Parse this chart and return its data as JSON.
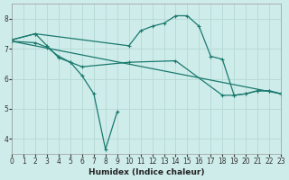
{
  "xlabel": "Humidex (Indice chaleur)",
  "background_color": "#ceecea",
  "grid_color": "#b8dbd8",
  "line_color": "#1a7a6e",
  "xlim": [
    0,
    23
  ],
  "ylim": [
    3.5,
    8.5
  ],
  "xticks": [
    0,
    1,
    2,
    3,
    4,
    5,
    6,
    7,
    8,
    9,
    10,
    11,
    12,
    13,
    14,
    15,
    16,
    17,
    18,
    19,
    20,
    21,
    22,
    23
  ],
  "yticks": [
    4,
    5,
    6,
    7,
    8
  ],
  "line1_x": [
    0,
    2,
    3,
    4,
    5,
    6,
    7,
    8,
    9
  ],
  "line1_y": [
    7.3,
    7.5,
    7.1,
    6.7,
    6.55,
    6.1,
    5.5,
    3.65,
    4.9
  ],
  "line2_x": [
    0,
    2,
    10,
    11,
    12,
    13,
    14,
    15,
    16,
    17,
    18,
    19,
    20,
    21,
    22,
    23
  ],
  "line2_y": [
    7.3,
    7.5,
    7.1,
    7.6,
    7.75,
    7.85,
    8.1,
    8.1,
    7.75,
    6.75,
    6.65,
    5.45,
    5.5,
    5.6,
    5.6,
    5.5
  ],
  "line3_x": [
    0,
    23
  ],
  "line3_y": [
    7.25,
    5.5
  ],
  "line4_x": [
    0,
    2,
    3,
    4,
    5,
    6,
    10,
    14,
    18,
    19,
    20,
    21,
    22,
    23
  ],
  "line4_y": [
    7.25,
    7.2,
    7.05,
    6.75,
    6.55,
    6.4,
    6.55,
    6.6,
    5.45,
    5.45,
    5.5,
    5.6,
    5.6,
    5.5
  ]
}
